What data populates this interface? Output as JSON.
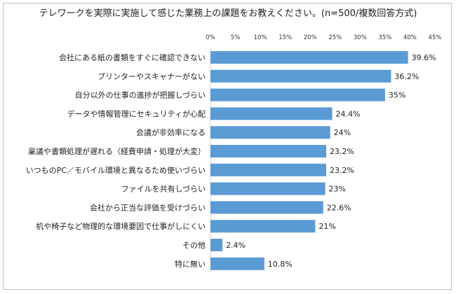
{
  "chart_data": {
    "type": "bar",
    "orientation": "horizontal",
    "title": "テレワークを実際に実施して感じた業務上の課題をお教えください。(n=500/複数回答方式)",
    "xlabel": "",
    "ylabel": "",
    "xlim": [
      0,
      45
    ],
    "x_ticks": [
      "0%",
      "5%",
      "10%",
      "15%",
      "20%",
      "25%",
      "30%",
      "35%",
      "40%",
      "45%"
    ],
    "grid": false,
    "legend": "none",
    "bar_color": "#5b9bd5",
    "categories": [
      "会社にある紙の書類をすぐに確認できない",
      "プリンターやスキャナーがない",
      "自分以外の仕事の進捗が把握しづらい",
      "データや情報管理にセキュリティが心配",
      "会議が非効率になる",
      "稟議や書類処理が遅れる（経費申請・処理が大変）",
      "いつものPC／モバイル環境と異なるため使いづらい",
      "ファイルを共有しづらい",
      "会社から正当な評価を受けづらい",
      "机や椅子など物理的な環境要因で仕事がしにくい",
      "その他",
      "特に無い"
    ],
    "values": [
      39.6,
      36.2,
      35,
      24.4,
      24,
      23.2,
      23.2,
      23,
      22.6,
      21,
      2.4,
      10.8
    ],
    "value_labels": [
      "39.6%",
      "36.2%",
      "35%",
      "24.4%",
      "24%",
      "23.2%",
      "23.2%",
      "23%",
      "22.6%",
      "21%",
      "2.4%",
      "10.8%"
    ]
  }
}
